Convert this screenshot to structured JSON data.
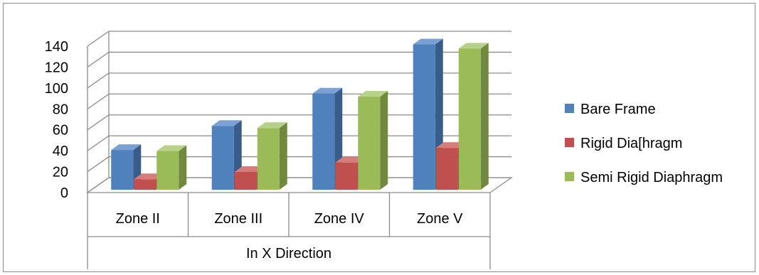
{
  "chart_data": {
    "type": "bar",
    "categories": [
      "Zone II",
      "Zone III",
      "Zone IV",
      "Zone V"
    ],
    "group_label": "In X Direction",
    "series": [
      {
        "name": "Bare Frame",
        "values": [
          38,
          61,
          92,
          139
        ]
      },
      {
        "name": "Rigid Dia[hragm",
        "values": [
          10,
          17,
          26,
          40
        ]
      },
      {
        "name": "Semi Rigid Diaphragm",
        "values": [
          37,
          59,
          89,
          135
        ]
      }
    ],
    "colors": {
      "series": [
        "#4f81bd",
        "#c0504d",
        "#9bbb59"
      ],
      "series_side": [
        "#385d8a",
        "#8c3836",
        "#71893f"
      ],
      "series_top": [
        "#7ba0d4",
        "#d47d7b",
        "#b7d18a"
      ],
      "grid": "#8c8c8c"
    },
    "y_ticks": [
      "0",
      "20",
      "40",
      "60",
      "80",
      "100",
      "120",
      "140"
    ],
    "ylim": [
      0,
      140
    ],
    "grid": true,
    "legend_position": "right",
    "projection": "3d-column"
  }
}
